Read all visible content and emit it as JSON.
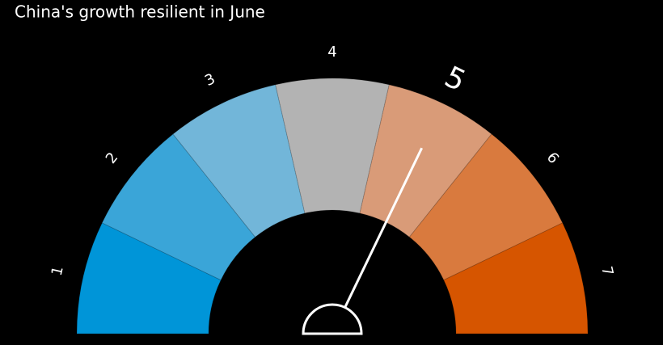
{
  "chart_data": {
    "type": "gauge",
    "title": "China's growth resilient in June",
    "categories": [
      "1",
      "2",
      "3",
      "4",
      "5",
      "6",
      "7"
    ],
    "colors": [
      "#0095d8",
      "#3aa5d8",
      "#72b6d9",
      "#b3b3b3",
      "#d99b78",
      "#d97a3e",
      "#d65500"
    ],
    "value": 5
  }
}
